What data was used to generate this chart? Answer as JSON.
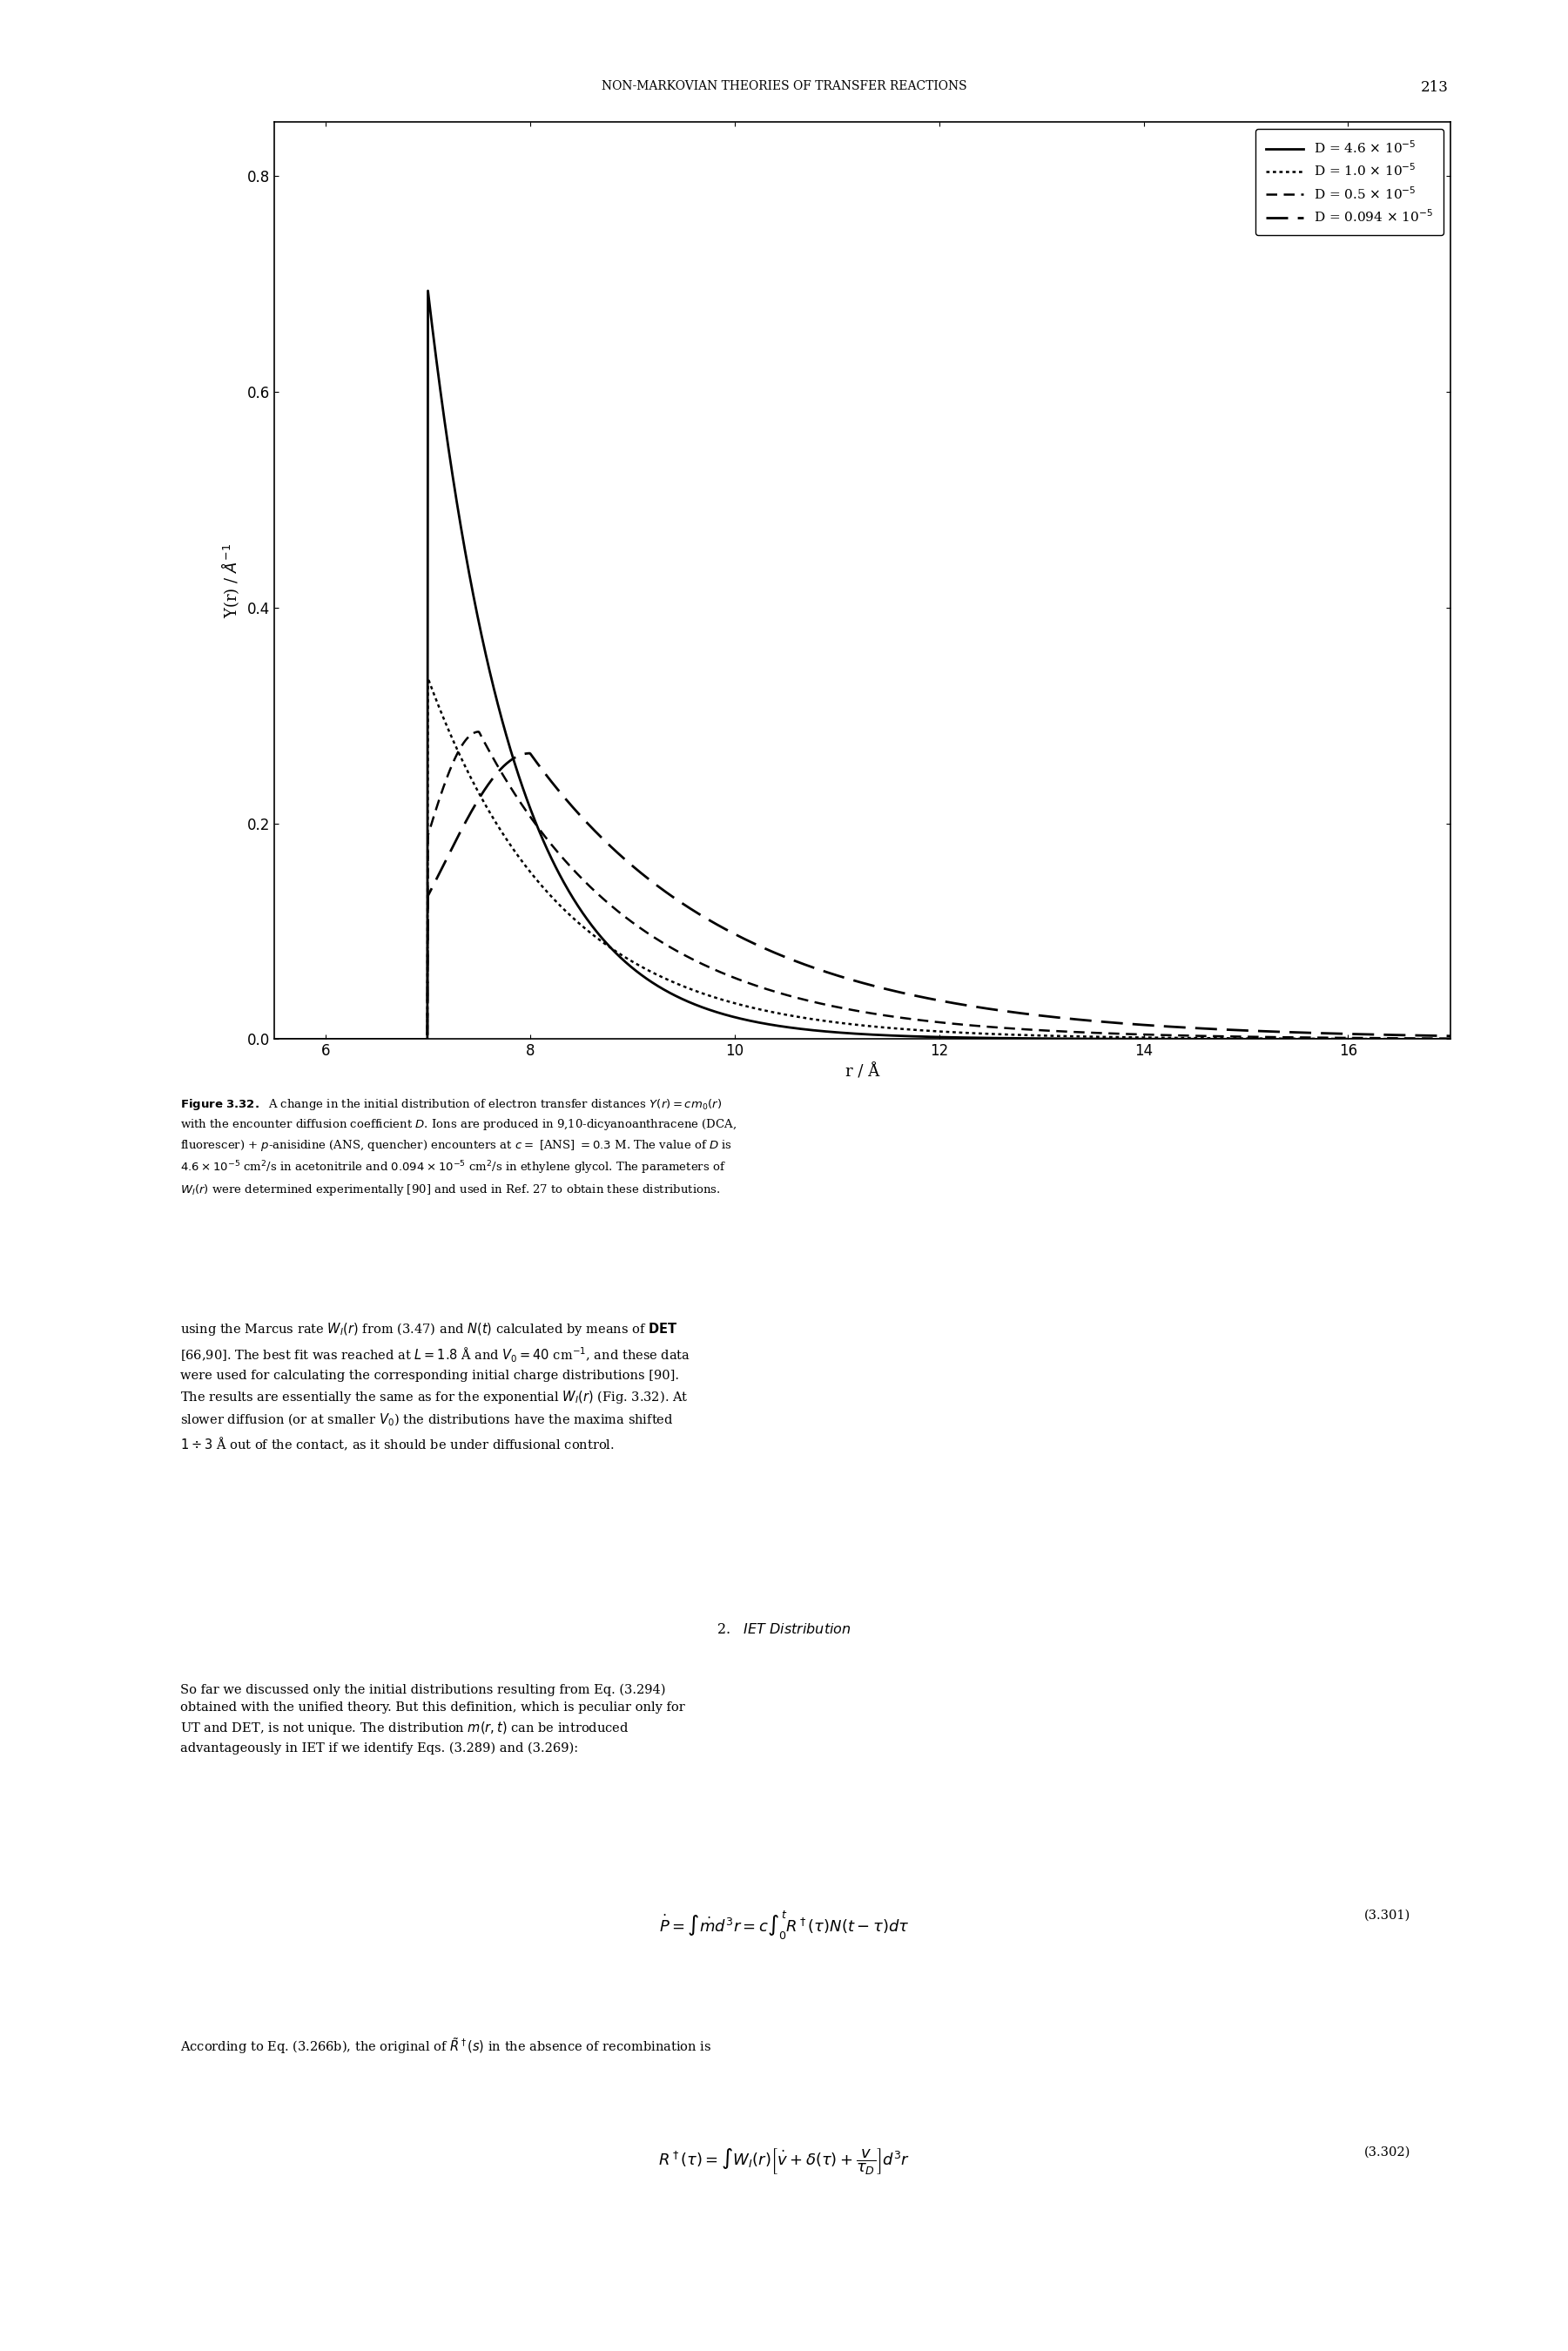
{
  "title_header": "NON-MARKOVIAN THEORIES OF TRANSFER REACTIONS",
  "page_number": "213",
  "xlabel": "r / Å",
  "xlim": [
    5.5,
    17
  ],
  "ylim": [
    0.0,
    0.85
  ],
  "xticks": [
    6,
    8,
    10,
    12,
    14,
    16
  ],
  "yticks": [
    0.0,
    0.2,
    0.4,
    0.6,
    0.8
  ],
  "r_contact": 7.0,
  "curve1": {
    "peak": 0.695,
    "decay": 0.85,
    "r_peak": 7.0
  },
  "curve2": {
    "peak": 0.335,
    "decay": 1.3,
    "r_peak": 7.0
  },
  "curve3": {
    "peak": 0.285,
    "decay": 1.55,
    "r_peak": 7.5,
    "sigma_rise": 0.55
  },
  "curve4": {
    "peak": 0.265,
    "decay": 2.0,
    "r_peak": 8.0,
    "sigma_rise": 0.85
  }
}
